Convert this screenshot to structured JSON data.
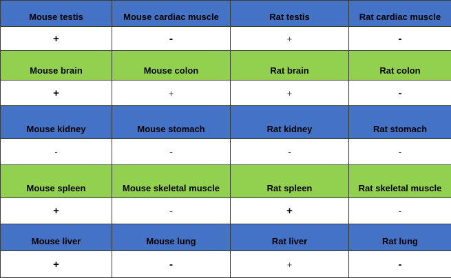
{
  "colors": {
    "blue_header": "#4472c4",
    "green_header": "#92d050",
    "value_background": "#ffffff",
    "border": "#3a3a3a"
  },
  "rows": [
    {
      "header_color": "blue",
      "headers": [
        "Mouse testis",
        "Mouse cardiac muscle",
        "Rat testis",
        "Rat cardiac muscle"
      ],
      "values": [
        "+",
        "-",
        "+",
        "-"
      ]
    },
    {
      "header_color": "green",
      "headers": [
        "Mouse brain",
        "Mouse colon",
        "Rat brain",
        "Rat colon"
      ],
      "values": [
        "+",
        "+",
        "+",
        "-"
      ]
    },
    {
      "header_color": "blue",
      "headers": [
        "Mouse kidney",
        "Mouse stomach",
        "Rat kidney",
        "Rat stomach"
      ],
      "values": [
        "-",
        "-",
        "-",
        "-"
      ]
    },
    {
      "header_color": "green",
      "headers": [
        "Mouse spleen",
        "Mouse skeletal muscle",
        "Rat spleen",
        "Rat skeletal muscle"
      ],
      "values": [
        "+",
        "-",
        "+",
        "-"
      ]
    },
    {
      "header_color": "blue",
      "headers": [
        "Mouse liver",
        "Mouse lung",
        "Rat liver",
        "Rat lung"
      ],
      "values": [
        "+",
        "-",
        "+",
        "-"
      ]
    }
  ]
}
